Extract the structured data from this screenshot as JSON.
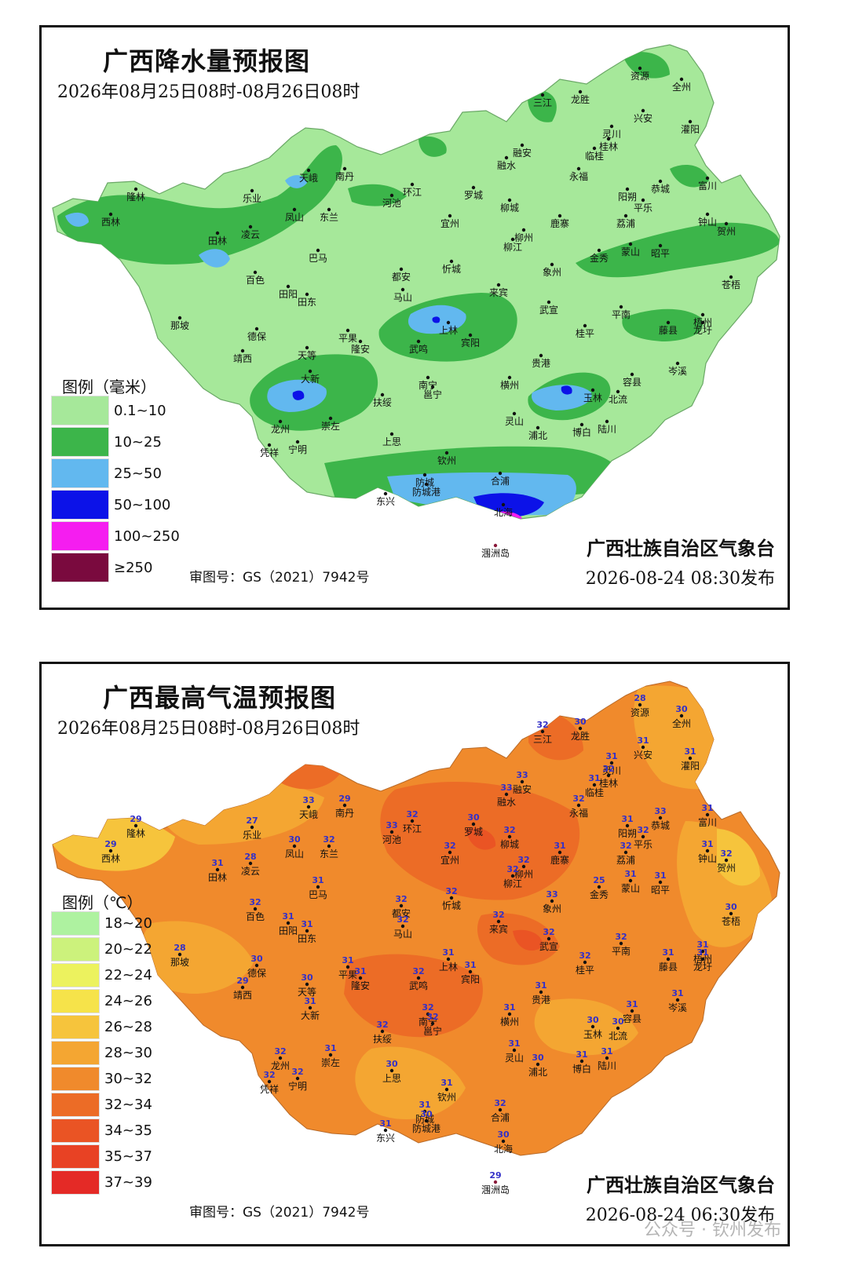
{
  "rain": {
    "title": "广西降水量预报图",
    "period": "2026年08月25日08时-08月26日08时",
    "legend_title": "图例（毫米）",
    "legend": [
      {
        "label": "0.1~10",
        "color": "#a6e89a"
      },
      {
        "label": "10~25",
        "color": "#3cb54a"
      },
      {
        "label": "25~50",
        "color": "#62b8ef"
      },
      {
        "label": "50~100",
        "color": "#0c12e8"
      },
      {
        "label": "100~250",
        "color": "#f51df0"
      },
      {
        "label": "≥250",
        "color": "#7a0a3e"
      }
    ],
    "approval": "审图号：GS（2021）7942号",
    "issuer": "广西壮族自治区气象台",
    "issued": "2026-08-24  08:30发布"
  },
  "temp": {
    "title": "广西最高气温预报图",
    "period": "2026年08月25日08时-08月26日08时",
    "legend_title": "图例（℃）",
    "legend": [
      {
        "label": "18~20",
        "color": "#aef2a0"
      },
      {
        "label": "20~22",
        "color": "#ccf27c"
      },
      {
        "label": "22~24",
        "color": "#ecf25e"
      },
      {
        "label": "24~26",
        "color": "#f6e34a"
      },
      {
        "label": "26~28",
        "color": "#f6c43c"
      },
      {
        "label": "28~30",
        "color": "#f4a632"
      },
      {
        "label": "30~32",
        "color": "#f08a2c"
      },
      {
        "label": "32~34",
        "color": "#ec6c26"
      },
      {
        "label": "34~35",
        "color": "#ea5424"
      },
      {
        "label": "35~37",
        "color": "#e84224"
      },
      {
        "label": "37~39",
        "color": "#e42a26"
      }
    ],
    "approval": "审图号：GS（2021）7942号",
    "issuer": "广西壮族自治区气象台",
    "issued": "2026-08-24  06:30发布"
  },
  "watermark": "公众号 · 钦州发布",
  "cities": [
    {
      "name": "资源",
      "t": 28
    },
    {
      "name": "全州",
      "t": 30
    },
    {
      "name": "三江",
      "t": 32
    },
    {
      "name": "龙胜",
      "t": 30
    },
    {
      "name": "兴安",
      "t": 31
    },
    {
      "name": "灌阳",
      "t": 31
    },
    {
      "name": "灵川",
      "t": 31
    },
    {
      "name": "桂林",
      "t": 32
    },
    {
      "name": "临桂",
      "t": 31
    },
    {
      "name": "融安",
      "t": 33
    },
    {
      "name": "融水",
      "t": 33
    },
    {
      "name": "永福",
      "t": 32
    },
    {
      "name": "恭城",
      "t": 33
    },
    {
      "name": "富川",
      "t": 31
    },
    {
      "name": "天峨",
      "t": 33
    },
    {
      "name": "南丹",
      "t": 29
    },
    {
      "name": "环江",
      "t": 32
    },
    {
      "name": "罗城",
      "t": 30
    },
    {
      "name": "阳朔",
      "t": 31
    },
    {
      "name": "平乐",
      "t": 32
    },
    {
      "name": "隆林",
      "t": 29
    },
    {
      "name": "乐业",
      "t": 27
    },
    {
      "name": "河池",
      "t": 33
    },
    {
      "name": "柳城",
      "t": 32
    },
    {
      "name": "钟山",
      "t": 31
    },
    {
      "name": "贺州",
      "t": 32
    },
    {
      "name": "西林",
      "t": 29
    },
    {
      "name": "凤山",
      "t": 30
    },
    {
      "name": "东兰",
      "t": 32
    },
    {
      "name": "宜州",
      "t": 32
    },
    {
      "name": "鹿寨",
      "t": 31
    },
    {
      "name": "荔浦",
      "t": 32
    },
    {
      "name": "田林",
      "t": 31
    },
    {
      "name": "凌云",
      "t": 28
    },
    {
      "name": "柳州",
      "t": 32
    },
    {
      "name": "柳江",
      "t": 32
    },
    {
      "name": "金秀",
      "t": 25
    },
    {
      "name": "蒙山",
      "t": 31
    },
    {
      "name": "昭平",
      "t": 31
    },
    {
      "name": "巴马",
      "t": 31
    },
    {
      "name": "忻城",
      "t": 32
    },
    {
      "name": "象州",
      "t": 33
    },
    {
      "name": "都安",
      "t": 32
    },
    {
      "name": "百色",
      "t": 32
    },
    {
      "name": "苍梧",
      "t": 30
    },
    {
      "name": "马山",
      "t": 32
    },
    {
      "name": "田阳",
      "t": 31
    },
    {
      "name": "田东",
      "t": 31
    },
    {
      "name": "来宾",
      "t": 32
    },
    {
      "name": "武宣",
      "t": 32
    },
    {
      "name": "平南",
      "t": 32
    },
    {
      "name": "梧州",
      "t": 31
    },
    {
      "name": "那坡",
      "t": 28
    },
    {
      "name": "德保",
      "t": 30
    },
    {
      "name": "平果",
      "t": 31
    },
    {
      "name": "上林",
      "t": 31
    },
    {
      "name": "宾阳",
      "t": 31
    },
    {
      "name": "藤县",
      "t": 31
    },
    {
      "name": "龙圩",
      "t": 31
    },
    {
      "name": "靖西",
      "t": 29
    },
    {
      "name": "隆安",
      "t": 31
    },
    {
      "name": "天等",
      "t": 30
    },
    {
      "name": "武鸣",
      "t": 32
    },
    {
      "name": "桂平",
      "t": 32
    },
    {
      "name": "贵港",
      "t": 31
    },
    {
      "name": "岑溪",
      "t": 31
    },
    {
      "name": "大新",
      "t": 31
    },
    {
      "name": "南宁",
      "t": 32
    },
    {
      "name": "邕宁",
      "t": 32
    },
    {
      "name": "横州",
      "t": 31
    },
    {
      "name": "容县",
      "t": 31
    },
    {
      "name": "扶绥",
      "t": 32
    },
    {
      "name": "玉林",
      "t": 30
    },
    {
      "name": "北流",
      "t": 30
    },
    {
      "name": "龙州",
      "t": 32
    },
    {
      "name": "崇左",
      "t": 31
    },
    {
      "name": "灵山",
      "t": 31
    },
    {
      "name": "浦北",
      "t": 30
    },
    {
      "name": "博白",
      "t": 31
    },
    {
      "name": "陆川",
      "t": 31
    },
    {
      "name": "凭祥",
      "t": 32
    },
    {
      "name": "宁明",
      "t": 32
    },
    {
      "name": "上思",
      "t": 30
    },
    {
      "name": "钦州",
      "t": 31
    },
    {
      "name": "防城",
      "t": 31
    },
    {
      "name": "防城港",
      "t": 30
    },
    {
      "name": "合浦",
      "t": 32
    },
    {
      "name": "东兴",
      "t": 31
    },
    {
      "name": "北海",
      "t": 30
    },
    {
      "name": "涠洲岛",
      "t": 29
    }
  ]
}
